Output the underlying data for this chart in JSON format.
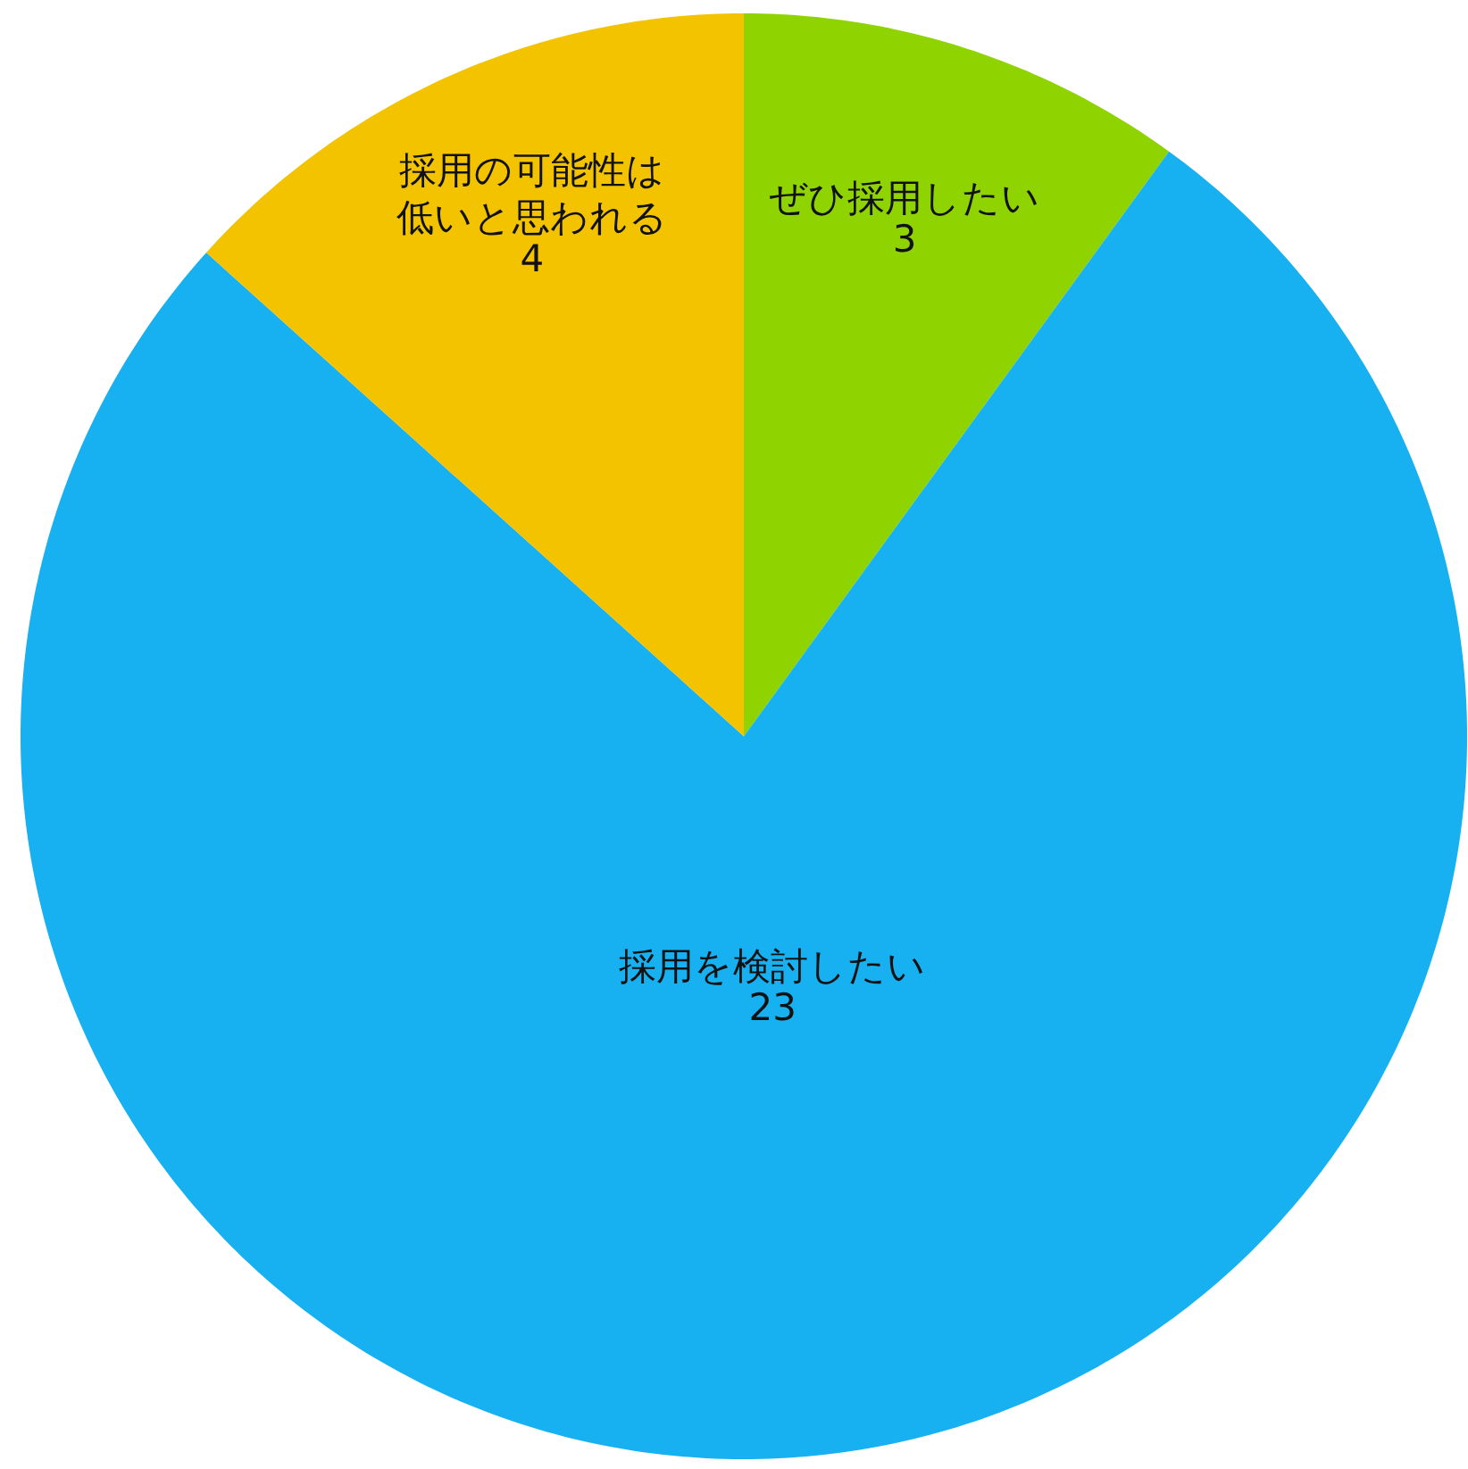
{
  "chart_data": {
    "type": "pie",
    "categories": [
      "ぜひ採用したい",
      "採用を検討したい",
      "採用の可能性は低いと思われる"
    ],
    "values": [
      3,
      23,
      4
    ],
    "colors": [
      "#8fd400",
      "#17b0f0",
      "#f3c300"
    ],
    "data_labels": true,
    "legend": false
  }
}
